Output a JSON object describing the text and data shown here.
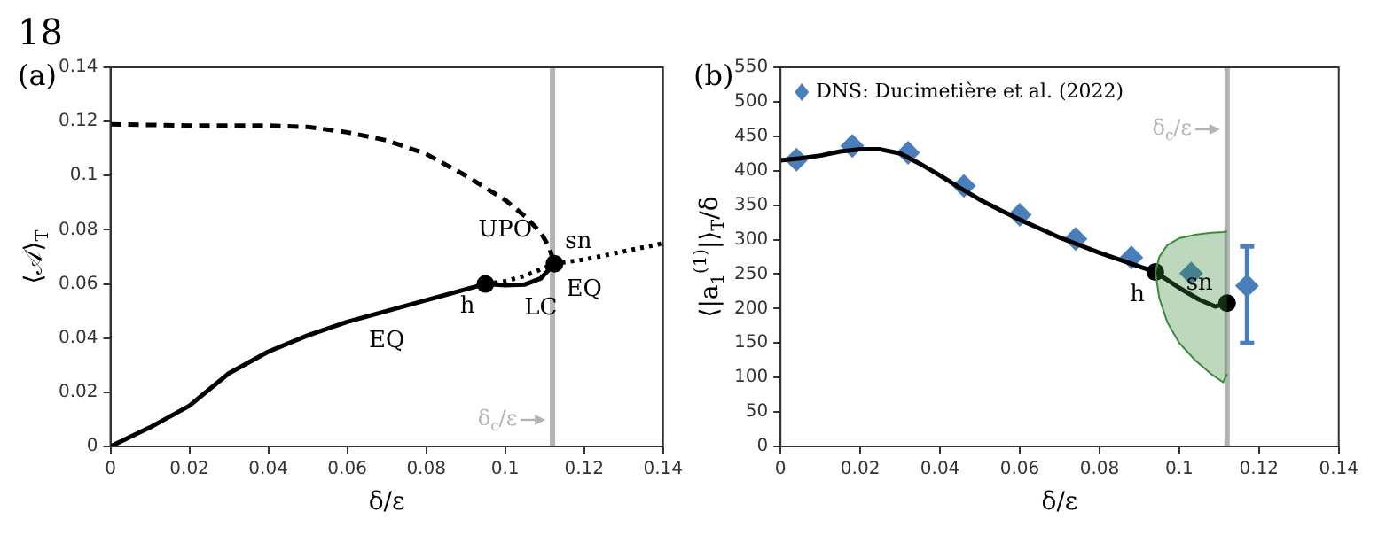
{
  "chart_data": [
    {
      "type": "line",
      "title": "(a)",
      "xlabel": "δ/ε",
      "ylabel": "⟨𝒜⟩$_{T}$",
      "xlim": [
        0,
        0.14
      ],
      "xticks": [
        0,
        0.02,
        0.04,
        0.06,
        0.08,
        0.1,
        0.12,
        0.14
      ],
      "ylim": [
        0,
        0.14
      ],
      "yticks": [
        0,
        0.02,
        0.04,
        0.06,
        0.08,
        0.1,
        0.12,
        0.14
      ],
      "series": [
        {
          "name": "EQ",
          "color": "#000000",
          "line_style": "solid",
          "x": [
            0,
            0.01,
            0.02,
            0.025,
            0.03,
            0.04,
            0.05,
            0.06,
            0.07,
            0.08,
            0.09,
            0.095
          ],
          "values": [
            0,
            0.007,
            0.015,
            0.021,
            0.027,
            0.035,
            0.041,
            0.046,
            0.05,
            0.054,
            0.058,
            0.06
          ]
        },
        {
          "name": "EQ",
          "color": "#000000",
          "line_style": "dotted",
          "x": [
            0.095,
            0.1,
            0.105,
            0.1125,
            0.12,
            0.13,
            0.14
          ],
          "values": [
            0.06,
            0.061,
            0.063,
            0.0675,
            0.069,
            0.072,
            0.075
          ]
        },
        {
          "name": "LC",
          "color": "#000000",
          "line_style": "solid",
          "x": [
            0.095,
            0.1,
            0.105,
            0.109,
            0.1125
          ],
          "values": [
            0.06,
            0.0595,
            0.0598,
            0.062,
            0.0675
          ]
        },
        {
          "name": "UPO",
          "color": "#000000",
          "line_style": "dashed",
          "x": [
            0,
            0.02,
            0.04,
            0.05,
            0.06,
            0.07,
            0.08,
            0.09,
            0.1,
            0.105,
            0.109,
            0.111,
            0.1125
          ],
          "values": [
            0.119,
            0.1185,
            0.1185,
            0.118,
            0.116,
            0.113,
            0.108,
            0.1,
            0.091,
            0.085,
            0.079,
            0.074,
            0.0675
          ]
        },
        {
          "type": "scatter",
          "name": "h",
          "color": "#000000",
          "marker": "circle",
          "x": [
            0.095
          ],
          "values": [
            0.06
          ]
        },
        {
          "type": "scatter",
          "name": "sn",
          "color": "#000000",
          "marker": "circle",
          "x": [
            0.1125
          ],
          "values": [
            0.0675
          ]
        }
      ],
      "ref_lines": [
        {
          "axis": "x",
          "value": 0.112,
          "color": "#b3b3b3",
          "label": "δ$_{c}$/ε"
        }
      ],
      "annotations": [
        "18"
      ]
    },
    {
      "type": "line",
      "title": "(b)",
      "xlabel": "δ/ε",
      "ylabel": "⟨|a$_{1}$$^{(1)}$|⟩$_{T}$/δ",
      "xlim": [
        0,
        0.14
      ],
      "xticks": [
        0,
        0.02,
        0.04,
        0.06,
        0.08,
        0.1,
        0.12,
        0.14
      ],
      "ylim": [
        0,
        550
      ],
      "yticks": [
        0,
        50,
        100,
        150,
        200,
        250,
        300,
        350,
        400,
        450,
        500,
        550
      ],
      "legend": "top left",
      "series": [
        {
          "type": "area",
          "color": "#3a8a3a",
          "x": [
            0.094,
            0.095,
            0.097,
            0.1,
            0.104,
            0.108,
            0.111,
            0.112
          ],
          "values": [
            null,
            null,
            null,
            null,
            null,
            null,
            null,
            null
          ],
          "lower": [
            253,
            215,
            180,
            150,
            125,
            105,
            93,
            105
          ],
          "upper": [
            253,
            275,
            292,
            302,
            307,
            310,
            311,
            312
          ]
        },
        {
          "color": "#000000",
          "line_style": "solid",
          "x": [
            0,
            0.005,
            0.01,
            0.015,
            0.02,
            0.025,
            0.03,
            0.035,
            0.04,
            0.045,
            0.05,
            0.055,
            0.06,
            0.065,
            0.07,
            0.075,
            0.08,
            0.085,
            0.09,
            0.094,
            0.1,
            0.105,
            0.109,
            0.112
          ],
          "values": [
            415,
            418,
            422,
            428,
            431,
            431,
            425,
            410,
            393,
            375,
            358,
            343,
            329,
            316,
            303,
            292,
            281,
            271,
            261,
            253,
            230,
            213,
            203,
            208
          ]
        },
        {
          "type": "scatter",
          "name": "DNS: Ducimetière et al. (2022)",
          "color": "#4a7ebb",
          "marker": "diamond",
          "x": [
            0.004,
            0.018,
            0.032,
            0.046,
            0.06,
            0.074,
            0.088,
            0.103
          ],
          "values": [
            416,
            436,
            426,
            378,
            336,
            301,
            274,
            251
          ]
        },
        {
          "type": "scatter",
          "color": "#4a7ebb",
          "marker": "diamond",
          "x": [
            0.117
          ],
          "values": [
            233
          ],
          "errors": [
            [
              150,
              290
            ]
          ]
        },
        {
          "type": "scatter",
          "name": "h",
          "color": "#000000",
          "marker": "circle",
          "x": [
            0.094
          ],
          "values": [
            253
          ]
        },
        {
          "type": "scatter",
          "name": "sn",
          "color": "#000000",
          "marker": "circle",
          "x": [
            0.112
          ],
          "values": [
            208
          ]
        }
      ],
      "ref_lines": [
        {
          "axis": "x",
          "value": 0.112,
          "color": "#b3b3b3",
          "label": "δ$_{c}$/ε"
        }
      ]
    }
  ]
}
